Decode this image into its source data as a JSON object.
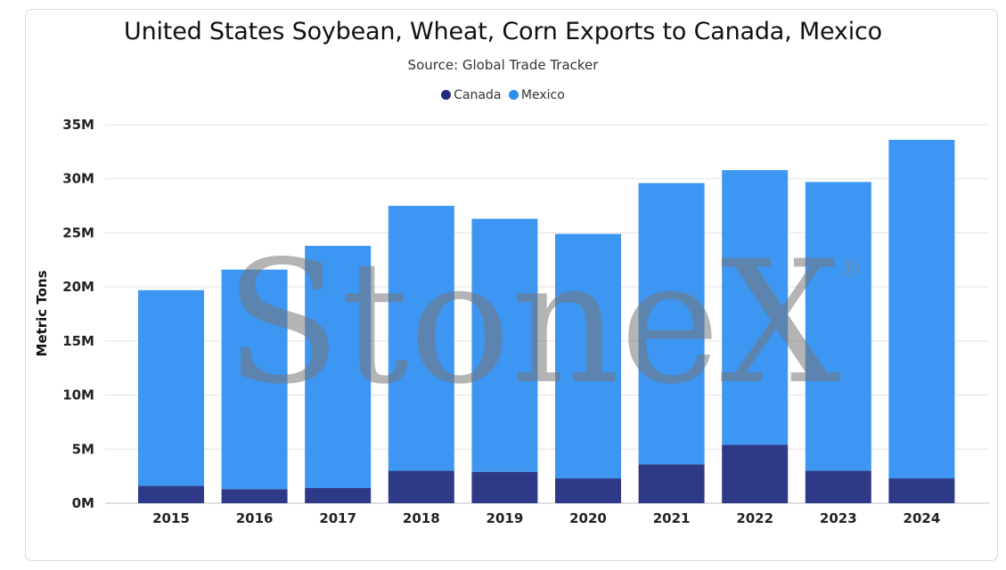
{
  "chart_data": {
    "type": "bar",
    "stacked": true,
    "title": "United States Soybean, Wheat, Corn Exports to Canada, Mexico",
    "subtitle": "Source: Global Trade Tracker",
    "xlabel": "",
    "ylabel": "Metric Tons",
    "categories": [
      "2015",
      "2016",
      "2017",
      "2018",
      "2019",
      "2020",
      "2021",
      "2022",
      "2023",
      "2024"
    ],
    "series": [
      {
        "name": "Canada",
        "color": "#2e3a87",
        "values": [
          1.6,
          1.3,
          1.4,
          3.0,
          2.9,
          2.3,
          3.6,
          5.4,
          3.0,
          2.3
        ]
      },
      {
        "name": "Mexico",
        "color": "#3d96f2",
        "values": [
          18.1,
          20.3,
          22.4,
          24.5,
          23.4,
          22.6,
          26.0,
          25.4,
          26.7,
          31.3
        ]
      }
    ],
    "ylim": [
      0,
      35
    ],
    "yticks": [
      0,
      5,
      10,
      15,
      20,
      25,
      30,
      35
    ],
    "ytick_labels": [
      "0M",
      "5M",
      "10M",
      "15M",
      "20M",
      "25M",
      "30M",
      "35M"
    ],
    "grid": true,
    "legend_position": "top-center"
  },
  "legend_marker_colors": {
    "canada": "#1f2a7a",
    "mexico": "#2b8ef0"
  },
  "watermark": {
    "text": "StoneX",
    "mark": "®"
  }
}
